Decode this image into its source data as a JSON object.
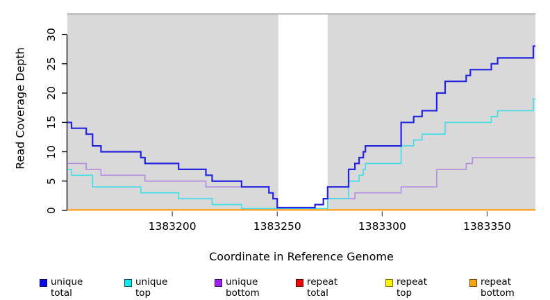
{
  "chart_data": {
    "type": "line",
    "step": true,
    "title": "",
    "xlabel": "Coordinate in Reference Genome",
    "ylabel": "Read Coverage Depth",
    "xlim": [
      1383150,
      1383373
    ],
    "ylim": [
      0,
      33.5
    ],
    "x_ticks": [
      1383200,
      1383250,
      1383300,
      1383350
    ],
    "y_ticks": [
      0,
      5,
      10,
      15,
      20,
      25,
      30
    ],
    "grid": false,
    "legend_position": "bottom",
    "panel_background": "#d9d9d9",
    "panel_top_border": "#9c9c9c",
    "axis_color": "#000000",
    "masked_region": {
      "start": 1383250.5,
      "end": 1383274,
      "color": "#ffffff"
    },
    "series": [
      {
        "name": "unique total",
        "color": "#2424e0",
        "legend_fill": "#0808f0",
        "legend_border": "#000060",
        "width": 2.2,
        "points": [
          [
            1383150,
            15
          ],
          [
            1383152,
            14
          ],
          [
            1383159,
            13
          ],
          [
            1383162,
            11
          ],
          [
            1383166,
            10
          ],
          [
            1383185,
            9
          ],
          [
            1383187,
            8
          ],
          [
            1383203,
            7
          ],
          [
            1383216,
            6
          ],
          [
            1383219,
            5
          ],
          [
            1383233,
            4
          ],
          [
            1383246,
            3
          ],
          [
            1383248,
            2
          ],
          [
            1383250,
            0
          ],
          [
            1383268,
            1
          ],
          [
            1383272,
            2
          ],
          [
            1383274,
            4
          ],
          [
            1383284,
            7
          ],
          [
            1383287,
            8
          ],
          [
            1383289,
            9
          ],
          [
            1383291,
            10
          ],
          [
            1383292,
            11
          ],
          [
            1383309,
            15
          ],
          [
            1383315,
            16
          ],
          [
            1383319,
            17
          ],
          [
            1383326,
            20
          ],
          [
            1383330,
            22
          ],
          [
            1383340,
            23
          ],
          [
            1383342,
            24
          ],
          [
            1383352,
            25
          ],
          [
            1383355,
            26
          ],
          [
            1383372,
            28
          ]
        ]
      },
      {
        "name": "unique top",
        "color": "#3fdde6",
        "legend_fill": "#00eded",
        "legend_border": "#005555",
        "width": 1.6,
        "points": [
          [
            1383150,
            7
          ],
          [
            1383152,
            6
          ],
          [
            1383162,
            4
          ],
          [
            1383185,
            3
          ],
          [
            1383203,
            2
          ],
          [
            1383219,
            1
          ],
          [
            1383233,
            0
          ],
          [
            1383274,
            2
          ],
          [
            1383284,
            5
          ],
          [
            1383289,
            6
          ],
          [
            1383291,
            7
          ],
          [
            1383292,
            8
          ],
          [
            1383309,
            11
          ],
          [
            1383315,
            12
          ],
          [
            1383319,
            13
          ],
          [
            1383330,
            15
          ],
          [
            1383352,
            16
          ],
          [
            1383355,
            17
          ],
          [
            1383372,
            19
          ]
        ]
      },
      {
        "name": "unique bottom",
        "color": "#b18ce0",
        "legend_fill": "#a020f0",
        "legend_border": "#3d0a66",
        "width": 1.6,
        "points": [
          [
            1383150,
            8
          ],
          [
            1383159,
            7
          ],
          [
            1383166,
            6
          ],
          [
            1383187,
            5
          ],
          [
            1383216,
            4
          ],
          [
            1383246,
            3
          ],
          [
            1383248,
            2
          ],
          [
            1383250,
            0
          ],
          [
            1383268,
            1
          ],
          [
            1383272,
            2
          ],
          [
            1383287,
            3
          ],
          [
            1383309,
            4
          ],
          [
            1383326,
            7
          ],
          [
            1383340,
            8
          ],
          [
            1383343,
            9
          ]
        ]
      },
      {
        "name": "repeat total",
        "color": "#e00000",
        "legend_fill": "#f00000",
        "legend_border": "#600000",
        "width": 1.6,
        "points": [
          [
            1383150,
            0
          ]
        ]
      },
      {
        "name": "repeat top",
        "color": "#e8e800",
        "legend_fill": "#f5f500",
        "legend_border": "#787800",
        "width": 1.6,
        "points": [
          [
            1383150,
            0
          ]
        ]
      },
      {
        "name": "repeat bottom",
        "color": "#ff9b0c",
        "legend_fill": "#ffa500",
        "legend_border": "#7a4b00",
        "width": 2,
        "points": [
          [
            1383150,
            0
          ]
        ]
      }
    ]
  }
}
